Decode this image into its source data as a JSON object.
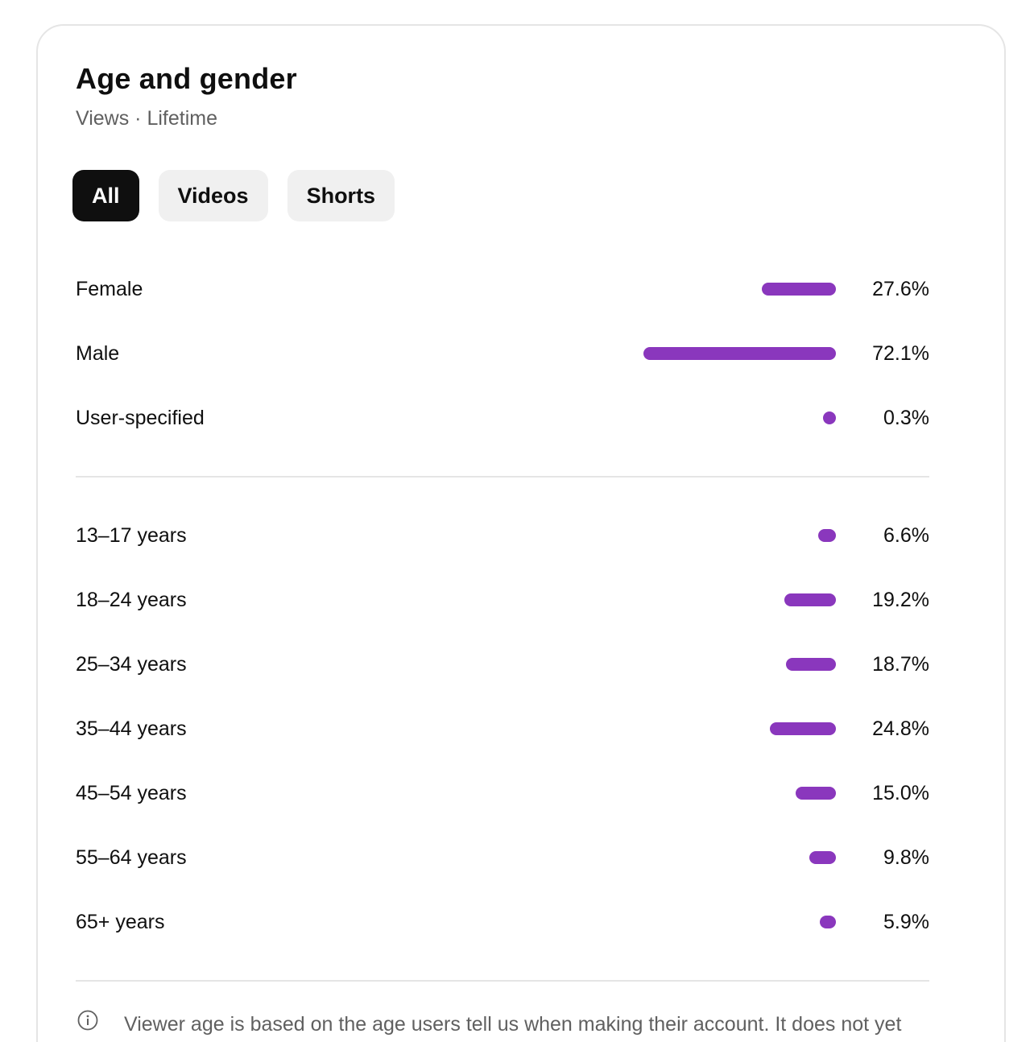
{
  "card": {
    "title": "Age and gender",
    "subtitle": "Views · Lifetime"
  },
  "filters": [
    {
      "label": "All",
      "selected": true
    },
    {
      "label": "Videos",
      "selected": false
    },
    {
      "label": "Shorts",
      "selected": false
    }
  ],
  "gender": [
    {
      "label": "Female",
      "value": "27.6%",
      "percent": 27.6
    },
    {
      "label": "Male",
      "value": "72.1%",
      "percent": 72.1
    },
    {
      "label": "User-specified",
      "value": "0.3%",
      "percent": 0.3
    }
  ],
  "age": [
    {
      "label": "13–17 years",
      "value": "6.6%",
      "percent": 6.6
    },
    {
      "label": "18–24 years",
      "value": "19.2%",
      "percent": 19.2
    },
    {
      "label": "25–34 years",
      "value": "18.7%",
      "percent": 18.7
    },
    {
      "label": "35–44 years",
      "value": "24.8%",
      "percent": 24.8
    },
    {
      "label": "45–54 years",
      "value": "15.0%",
      "percent": 15.0
    },
    {
      "label": "55–64 years",
      "value": "9.8%",
      "percent": 9.8
    },
    {
      "label": "65+ years",
      "value": "5.9%",
      "percent": 5.9
    }
  ],
  "footnote": {
    "icon": "info-icon",
    "text": "Viewer age is based on the age users tell us when making their account. It does not yet"
  },
  "colors": {
    "bar": "#8a37bd",
    "chip_active_bg": "#0f0f0f",
    "chip_bg": "#f0f0f0"
  }
}
